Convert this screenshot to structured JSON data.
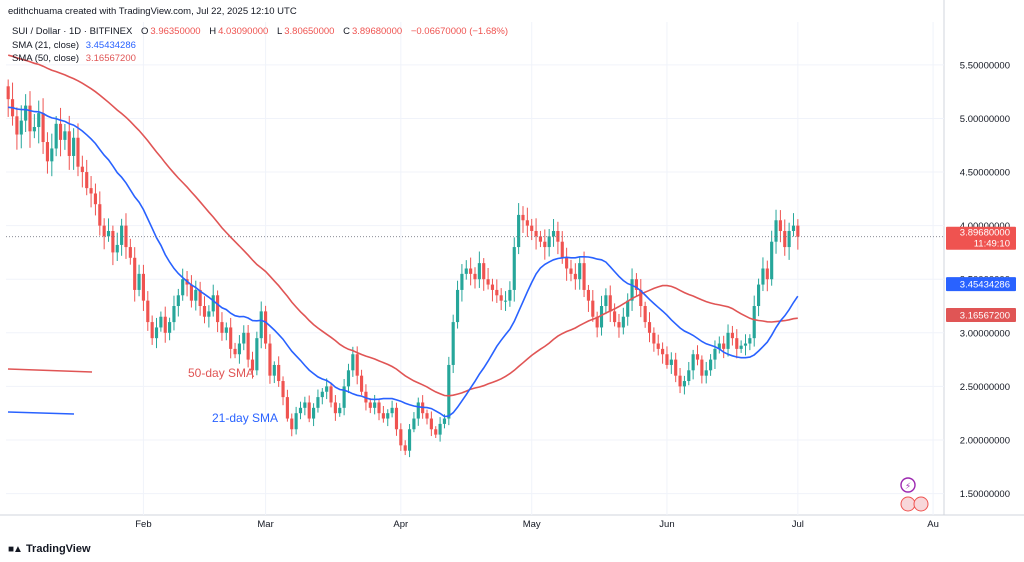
{
  "header": {
    "author_line": "edithchuama created with TradingView.com, Jul 22, 2025 12:10 UTC",
    "symbol": "SUI / Dollar · 1D · BITFINEX",
    "ohlc": {
      "o_label": "O",
      "o": "3.96350000",
      "h_label": "H",
      "h": "4.03090000",
      "l_label": "L",
      "l": "3.80650000",
      "c_label": "C",
      "c": "3.89680000",
      "change": "−0.06670000 (−1.68%)"
    },
    "sma21_label": "SMA (21, close)",
    "sma21_value": "3.45434286",
    "sma50_label": "SMA (50, close)",
    "sma50_value": "3.16567200"
  },
  "brand": "TradingView",
  "colors": {
    "up": "#26a69a",
    "down": "#ef5350",
    "sma21": "#2962ff",
    "sma50": "#e05555",
    "grid": "#f0f3fa",
    "text": "#131722",
    "price_tag": "#ef5350"
  },
  "chart_data": {
    "type": "candlestick",
    "title": "SUI / Dollar · 1D · BITFINEX",
    "ylim": [
      1.3,
      5.9
    ],
    "y_ticks": [
      1.5,
      2.0,
      2.5,
      3.0,
      3.5,
      4.0,
      4.5,
      5.0,
      5.5
    ],
    "y_tick_labels": [
      "1.50000000",
      "2.00000000",
      "2.50000000",
      "3.00000000",
      "3.50000000",
      "4.00000000",
      "4.50000000",
      "5.00000000",
      "5.50000000"
    ],
    "x_ticks": [
      {
        "label": "Feb",
        "index": 31
      },
      {
        "label": "Mar",
        "index": 59
      },
      {
        "label": "Apr",
        "index": 90
      },
      {
        "label": "May",
        "index": 120
      },
      {
        "label": "Jun",
        "index": 151
      },
      {
        "label": "Jul",
        "index": 181
      },
      {
        "label": "Au",
        "index": 212
      }
    ],
    "series": [
      {
        "name": "SUI/USD",
        "kind": "ohlc"
      },
      {
        "name": "SMA (21, close)",
        "kind": "line",
        "color": "#2962ff"
      },
      {
        "name": "SMA (50, close)",
        "kind": "line",
        "color": "#e05555"
      }
    ],
    "annotations": [
      {
        "text": "50-day SMA",
        "color": "#e05555"
      },
      {
        "text": "21-day SMA",
        "color": "#2962ff"
      }
    ],
    "last_price": {
      "value": 3.8968,
      "label": "3.89680000",
      "countdown": "11:49:10"
    },
    "sma21_last": {
      "value": 3.45434286,
      "label": "3.45434286"
    },
    "sma50_last": {
      "value": 3.165672,
      "label": "3.16567200"
    },
    "closes": [
      5.18,
      5.02,
      4.85,
      4.98,
      5.12,
      4.88,
      4.92,
      5.05,
      4.78,
      4.6,
      4.72,
      4.95,
      4.8,
      4.88,
      4.65,
      4.82,
      4.55,
      4.5,
      4.35,
      4.3,
      4.2,
      4.0,
      3.9,
      3.95,
      3.75,
      3.82,
      4.0,
      3.8,
      3.7,
      3.4,
      3.55,
      3.3,
      3.1,
      2.95,
      3.05,
      3.15,
      3.0,
      3.1,
      3.25,
      3.35,
      3.5,
      3.45,
      3.3,
      3.4,
      3.25,
      3.15,
      3.2,
      3.35,
      3.1,
      3.0,
      3.05,
      2.85,
      2.8,
      2.9,
      3.0,
      2.75,
      2.65,
      2.95,
      3.2,
      2.9,
      2.6,
      2.7,
      2.55,
      2.4,
      2.2,
      2.1,
      2.25,
      2.3,
      2.35,
      2.2,
      2.3,
      2.4,
      2.45,
      2.5,
      2.35,
      2.25,
      2.3,
      2.5,
      2.65,
      2.8,
      2.6,
      2.45,
      2.35,
      2.3,
      2.35,
      2.25,
      2.2,
      2.25,
      2.3,
      2.1,
      1.95,
      1.9,
      2.1,
      2.2,
      2.35,
      2.25,
      2.2,
      2.1,
      2.05,
      2.15,
      2.2,
      2.7,
      3.1,
      3.4,
      3.55,
      3.6,
      3.55,
      3.5,
      3.65,
      3.5,
      3.45,
      3.4,
      3.35,
      3.3,
      3.3,
      3.4,
      3.8,
      4.1,
      4.05,
      4.0,
      3.95,
      3.9,
      3.85,
      3.8,
      3.9,
      3.95,
      3.85,
      3.7,
      3.6,
      3.55,
      3.5,
      3.65,
      3.4,
      3.3,
      3.15,
      3.05,
      3.25,
      3.35,
      3.2,
      3.1,
      3.05,
      3.15,
      3.3,
      3.5,
      3.4,
      3.25,
      3.1,
      3.0,
      2.9,
      2.85,
      2.8,
      2.7,
      2.75,
      2.6,
      2.5,
      2.55,
      2.65,
      2.8,
      2.75,
      2.6,
      2.65,
      2.75,
      2.85,
      2.9,
      2.85,
      3.0,
      2.95,
      2.85,
      2.88,
      2.9,
      2.95,
      3.25,
      3.45,
      3.6,
      3.5,
      3.85,
      4.05,
      3.95,
      3.8,
      3.95,
      4.0,
      3.8968
    ]
  }
}
